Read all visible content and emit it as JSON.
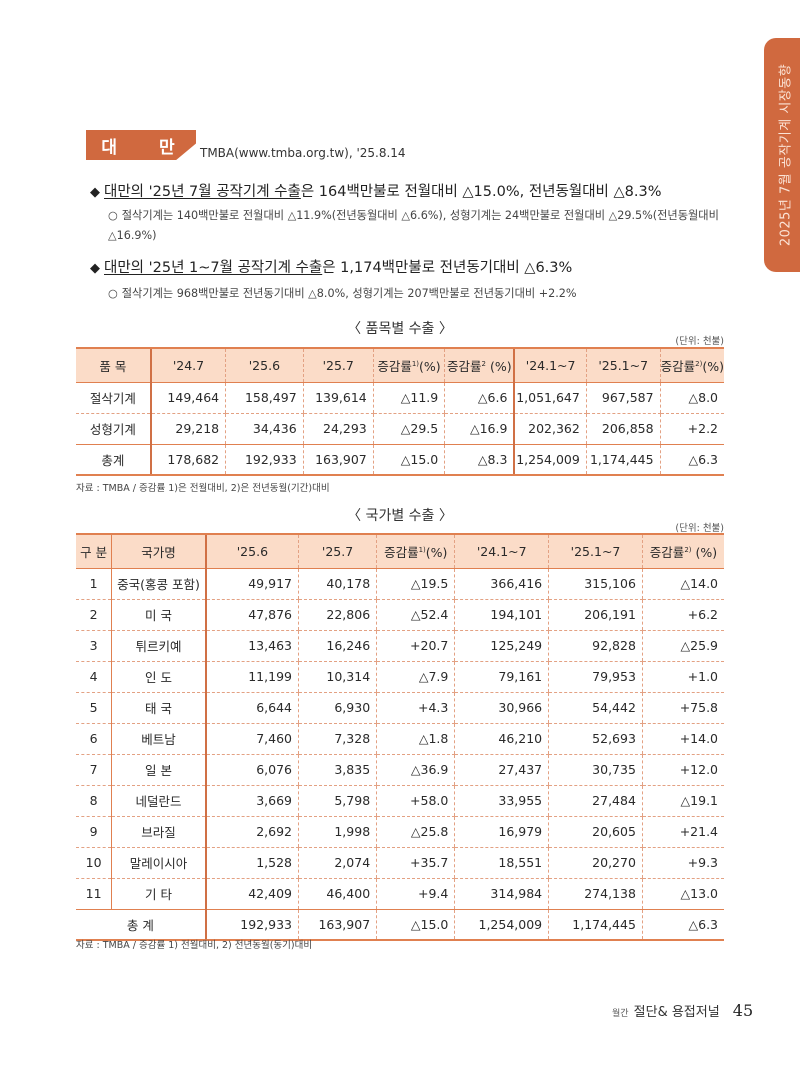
{
  "side_tab": {
    "text": "2025년 7월 공작기계 시장동향"
  },
  "section": {
    "badge": "대 만",
    "source": "TMBA(www.tmba.org.tw), '25.8.14"
  },
  "bullets": [
    {
      "underlined": "대만의 '25년 7월 공작기계 수출",
      "rest": "은 164백만불로 전월대비 △15.0%, 전년동월대비 △8.3%",
      "sub": "절삭기계는 140백만불로 전월대비 △11.9%(전년동월대비 △6.6%), 성형기계는 24백만불로 전월대비 △29.5%(전년동월대비 △16.9%)"
    },
    {
      "underlined": "대만의 '25년 1~7월 공작기계 수출",
      "rest": "은  1,174백만불로 전년동기대비 △6.3%",
      "sub": "절삭기계는 968백만불로 전년동기대비 △8.0%, 성형기계는 207백만불로 전년동기대비 +2.2%"
    }
  ],
  "table1": {
    "title": "〈 품목별 수출 〉",
    "unit": "(단위: 천불)",
    "headers": [
      "품 목",
      "'24.7",
      "'25.6",
      "'25.7",
      "증감률",
      "1)",
      "(%)",
      "증감률",
      "2",
      " (%)",
      "'24.1~7",
      "'25.1~7",
      "증감률",
      "2)",
      "(%)"
    ],
    "rows": [
      [
        "절삭기계",
        "149,464",
        "158,497",
        "139,614",
        "△11.9",
        "△6.6",
        "1,051,647",
        "967,587",
        "△8.0"
      ],
      [
        "성형기계",
        "29,218",
        "34,436",
        "24,293",
        "△29.5",
        "△16.9",
        "202,362",
        "206,858",
        "+2.2"
      ],
      [
        "총계",
        "178,682",
        "192,933",
        "163,907",
        "△15.0",
        "△8.3",
        "1,254,009",
        "1,174,445",
        "△6.3"
      ]
    ],
    "note": "자료 : TMBA / 증감률 1)은 전월대비, 2)은 전년동월(기간)대비"
  },
  "table2": {
    "title": "〈 국가별 수출 〉",
    "unit": "(단위: 천불)",
    "headers": [
      "구 분",
      "국가명",
      "'25.6",
      "'25.7",
      "증감률",
      "1)",
      "(%)",
      "'24.1~7",
      "'25.1~7",
      "증감률",
      "2)",
      " (%)"
    ],
    "rows": [
      [
        "1",
        "중국(홍콩 포함)",
        "49,917",
        "40,178",
        "△19.5",
        "366,416",
        "315,106",
        "△14.0"
      ],
      [
        "2",
        "미 국",
        "47,876",
        "22,806",
        "△52.4",
        "194,101",
        "206,191",
        "+6.2"
      ],
      [
        "3",
        "튀르키예",
        "13,463",
        "16,246",
        "+20.7",
        "125,249",
        "92,828",
        "△25.9"
      ],
      [
        "4",
        "인 도",
        "11,199",
        "10,314",
        "△7.9",
        "79,161",
        "79,953",
        "+1.0"
      ],
      [
        "5",
        "태 국",
        "6,644",
        "6,930",
        "+4.3",
        "30,966",
        "54,442",
        "+75.8"
      ],
      [
        "6",
        "베트남",
        "7,460",
        "7,328",
        "△1.8",
        "46,210",
        "52,693",
        "+14.0"
      ],
      [
        "7",
        "일 본",
        "6,076",
        "3,835",
        "△36.9",
        "27,437",
        "30,735",
        "+12.0"
      ],
      [
        "8",
        "네덜란드",
        "3,669",
        "5,798",
        "+58.0",
        "33,955",
        "27,484",
        "△19.1"
      ],
      [
        "9",
        "브라질",
        "2,692",
        "1,998",
        "△25.8",
        "16,979",
        "20,605",
        "+21.4"
      ],
      [
        "10",
        "말레이시아",
        "1,528",
        "2,074",
        "+35.7",
        "18,551",
        "20,270",
        "+9.3"
      ],
      [
        "11",
        "기 타",
        "42,409",
        "46,400",
        "+9.4",
        "314,984",
        "274,138",
        "△13.0"
      ]
    ],
    "total": [
      "총 계",
      "192,933",
      "163,907",
      "△15.0",
      "1,254,009",
      "1,174,445",
      "△6.3"
    ],
    "note": "자료 : TMBA / 증감률 1) 전월대비, 2) 전년동월(동기)대비"
  },
  "footer": {
    "prefix": "월간",
    "magazine": "절단& 용접저널",
    "page": "45"
  },
  "colors": {
    "accent": "#d0693f",
    "header_bg": "#fbdcc8",
    "border": "#e08050"
  }
}
